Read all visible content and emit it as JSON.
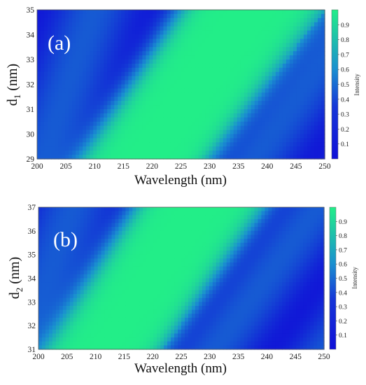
{
  "colormap": {
    "low": "#1010d8",
    "mid": "#1a8fd0",
    "high": "#22ee88"
  },
  "chart_data": [
    {
      "type": "heatmap",
      "panel_label": "(a)",
      "xlabel": "Wavelength (nm)",
      "ylabel_main": "d",
      "ylabel_sub": "1",
      "ylabel_unit": " (nm)",
      "xlim": [
        200,
        250
      ],
      "ylim": [
        29,
        35
      ],
      "x_ticks": [
        "200",
        "205",
        "210",
        "215",
        "220",
        "225",
        "230",
        "235",
        "240",
        "245",
        "250"
      ],
      "y_ticks": [
        "29",
        "30",
        "31",
        "32",
        "33",
        "34",
        "35"
      ],
      "colorbar_label": "Intensity",
      "colorbar_range": [
        0,
        1
      ],
      "colorbar_ticks": [
        "0.1",
        "0.2",
        "0.3",
        "0.4",
        "0.5",
        "0.6",
        "0.7",
        "0.8",
        "0.9"
      ],
      "band_left_edge": [
        [
          207,
          29
        ],
        [
          225,
          35
        ]
      ],
      "band_right_edge": [
        [
          230.5,
          29
        ],
        [
          250,
          35
        ]
      ],
      "secondary_dark_left": [
        [
          201,
          29
        ],
        [
          210,
          35
        ]
      ],
      "secondary_dark_right": [
        [
          238,
          29
        ],
        [
          250,
          33
        ]
      ]
    },
    {
      "type": "heatmap",
      "panel_label": "(b)",
      "xlabel": "Wavelength (nm)",
      "ylabel_main": "d",
      "ylabel_sub": "2",
      "ylabel_unit": " (nm)",
      "xlim": [
        200,
        250
      ],
      "ylim": [
        31,
        37
      ],
      "x_ticks": [
        "200",
        "205",
        "210",
        "215",
        "220",
        "225",
        "230",
        "235",
        "240",
        "245",
        "250"
      ],
      "y_ticks": [
        "31",
        "32",
        "33",
        "34",
        "35",
        "36",
        "37"
      ],
      "colorbar_label": "Intensity",
      "colorbar_range": [
        0,
        1
      ],
      "colorbar_ticks": [
        "0.1",
        "0.2",
        "0.3",
        "0.4",
        "0.5",
        "0.6",
        "0.7",
        "0.8",
        "0.9"
      ],
      "band_left_edge": [
        [
          200.5,
          31
        ],
        [
          216.5,
          37
        ]
      ],
      "band_right_edge": [
        [
          222,
          31
        ],
        [
          240,
          37
        ]
      ],
      "secondary_dark_left": [
        [
          200,
          33
        ],
        [
          206,
          37
        ]
      ],
      "secondary_dark_right": [
        [
          231,
          31
        ],
        [
          249,
          37
        ]
      ]
    }
  ]
}
